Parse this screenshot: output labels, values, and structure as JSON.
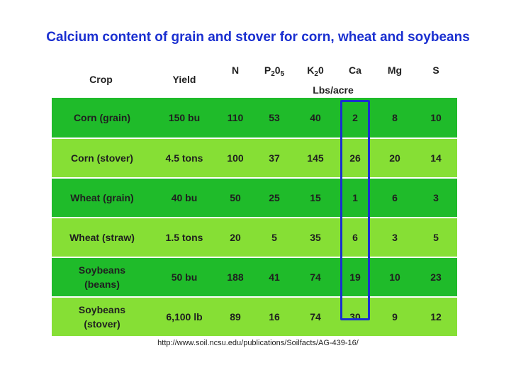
{
  "chart_data": {
    "type": "table",
    "title": "Calcium content of grain and stover for corn, wheat and soybeans",
    "columns": {
      "crop": "Crop",
      "yield": "Yield",
      "n": "N",
      "p_base": "P",
      "p_sub1": "2",
      "p_mid": "0",
      "p_sub2": "5",
      "k_base": "K",
      "k_sub": "2",
      "k_end": "0",
      "ca": "Ca",
      "mg": "Mg",
      "s": "S"
    },
    "units": "Lbs/acre",
    "highlighted_column": "Ca",
    "rows": [
      {
        "crop": "Corn (grain)",
        "yield": "150 bu",
        "n": 110,
        "p2o5": 53,
        "k2o": 40,
        "ca": 2,
        "mg": 8,
        "s": 10
      },
      {
        "crop": "Corn (stover)",
        "yield": "4.5 tons",
        "n": 100,
        "p2o5": 37,
        "k2o": 145,
        "ca": 26,
        "mg": 20,
        "s": 14
      },
      {
        "crop": "Wheat (grain)",
        "yield": "40 bu",
        "n": 50,
        "p2o5": 25,
        "k2o": 15,
        "ca": 1,
        "mg": 6,
        "s": 3
      },
      {
        "crop": "Wheat (straw)",
        "yield": "1.5 tons",
        "n": 20,
        "p2o5": 5,
        "k2o": 35,
        "ca": 6,
        "mg": 3,
        "s": 5
      },
      {
        "crop": "Soybeans (beans)",
        "yield": "50 bu",
        "n": 188,
        "p2o5": 41,
        "k2o": 74,
        "ca": 19,
        "mg": 10,
        "s": 23
      },
      {
        "crop": "Soybeans (stover)",
        "yield": "6,100 lb",
        "n": 89,
        "p2o5": 16,
        "k2o": 74,
        "ca": 30,
        "mg": 9,
        "s": 12
      }
    ],
    "source": "http://www.soil.ncsu.edu/publications/Soilfacts/AG-439-16/",
    "colors": {
      "row_dark": "#1fbb2a",
      "row_light": "#86df35",
      "title": "#1a2fd0",
      "highlight": "#1a2fd0"
    }
  }
}
